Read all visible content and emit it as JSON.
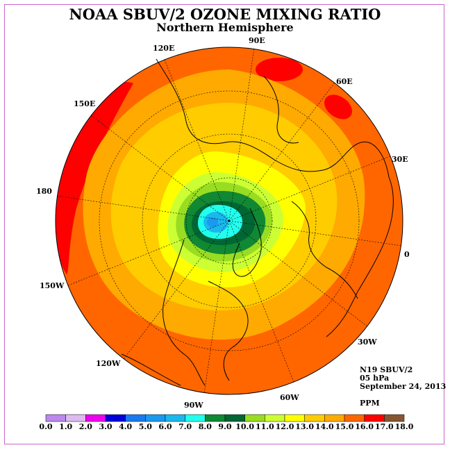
{
  "title": "NOAA SBUV/2 OZONE MIXING RATIO",
  "subtitle": "Northern Hemisphere",
  "longitude_labels": {
    "e120": "120E",
    "e90": "90E",
    "e60": "60E",
    "e150": "150E",
    "e30": "30E",
    "d180": "180",
    "zero": "0",
    "w150": "150W",
    "w30": "30W",
    "w120": "120W",
    "w60": "60W",
    "w90": "90W"
  },
  "info": {
    "instrument": "N19 SBUV/2",
    "level": "05 hPa",
    "date": "September 24, 2013",
    "units": "PPM"
  },
  "colorbar": {
    "ticks": [
      "0.0",
      "1.0",
      "2.0",
      "3.0",
      "4.0",
      "5.0",
      "6.0",
      "7.0",
      "8.0",
      "9.0",
      "10.0",
      "11.0",
      "12.0",
      "13.0",
      "14.0",
      "15.0",
      "16.0",
      "17.0",
      "18.0"
    ],
    "colors": [
      "#bb88ee",
      "#ddbbee",
      "#ee00ee",
      "#0000dd",
      "#1a7aee",
      "#1a99ee",
      "#1ab8ee",
      "#22ffee",
      "#118833",
      "#006633",
      "#99dd22",
      "#ccff33",
      "#ffff00",
      "#ffcc00",
      "#ffaa00",
      "#ff6600",
      "#ff0000",
      "#885533"
    ]
  }
}
